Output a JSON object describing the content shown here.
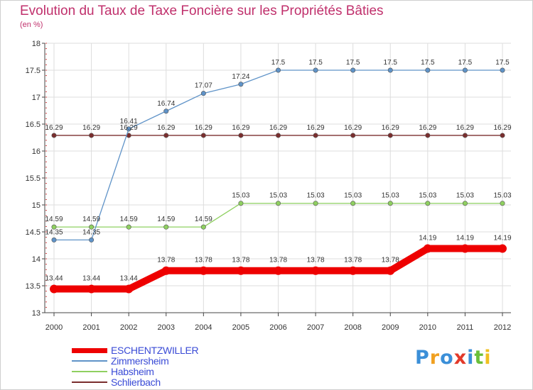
{
  "title": "Evolution du Taux de Taxe Foncière sur les Propriétés Bâties",
  "subtitle": "(en %)",
  "chart_data": {
    "type": "line",
    "title": "Evolution du Taux de Taxe Foncière sur les Propriétés Bâties",
    "ylabel": "(en %)",
    "xlabel": "",
    "x": [
      "2000",
      "2001",
      "2002",
      "2003",
      "2004",
      "2005",
      "2006",
      "2007",
      "2008",
      "2009",
      "2010",
      "2011",
      "2012"
    ],
    "ylim": [
      13,
      18
    ],
    "yticks": [
      "13",
      "13.5",
      "14",
      "14.5",
      "15",
      "15.5",
      "16",
      "16.5",
      "17",
      "17.5",
      "18"
    ],
    "grid": true,
    "series": [
      {
        "name": "ESCHENTZWILLER",
        "color": "#ee0000",
        "values": [
          13.44,
          13.44,
          13.44,
          13.78,
          13.78,
          13.78,
          13.78,
          13.78,
          13.78,
          13.78,
          14.19,
          14.19,
          14.19
        ],
        "labels": [
          "13.44",
          "13.44",
          "13.44",
          "13.78",
          "13.78",
          "13.78",
          "13.78",
          "13.78",
          "13.78",
          "13.78",
          "14.19",
          "14.19",
          "14.19"
        ]
      },
      {
        "name": "Zimmersheim",
        "color": "#5f93c8",
        "values": [
          14.35,
          14.35,
          16.41,
          16.74,
          17.07,
          17.24,
          17.5,
          17.5,
          17.5,
          17.5,
          17.5,
          17.5,
          17.5
        ],
        "labels": [
          "14.35",
          "14.35",
          "16.41",
          "16.74",
          "17.07",
          "17.24",
          "17.5",
          "17.5",
          "17.5",
          "17.5",
          "17.5",
          "17.5",
          "17.5"
        ]
      },
      {
        "name": "Habsheim",
        "color": "#8fd060",
        "values": [
          14.59,
          14.59,
          14.59,
          14.59,
          14.59,
          15.03,
          15.03,
          15.03,
          15.03,
          15.03,
          15.03,
          15.03,
          15.03
        ],
        "labels": [
          "14.59",
          "14.59",
          "14.59",
          "14.59",
          "14.59",
          "15.03",
          "15.03",
          "15.03",
          "15.03",
          "15.03",
          "15.03",
          "15.03",
          "15.03"
        ]
      },
      {
        "name": "Schlierbach",
        "color": "#7a2e2e",
        "values": [
          16.29,
          16.29,
          16.29,
          16.29,
          16.29,
          16.29,
          16.29,
          16.29,
          16.29,
          16.29,
          16.29,
          16.29,
          16.29
        ],
        "labels": [
          "16.29",
          "16.29",
          "16.29",
          "16.29",
          "16.29",
          "16.29",
          "16.29",
          "16.29",
          "16.29",
          "16.29",
          "16.29",
          "16.29",
          "16.29"
        ]
      }
    ]
  },
  "legend": [
    {
      "label": "ESCHENTZWILLER",
      "color": "#ee0000"
    },
    {
      "label": "Zimmersheim",
      "color": "#5f93c8"
    },
    {
      "label": "Habsheim",
      "color": "#8fd060"
    },
    {
      "label": "Schlierbach",
      "color": "#7a2e2e"
    }
  ],
  "logo": {
    "text": "Proxiti",
    "colors": [
      "#3b8fd8",
      "#f0a020",
      "#3b8fd8",
      "#e23a2a",
      "#3b8fd8",
      "#6abf3a",
      "#f0c020"
    ]
  }
}
